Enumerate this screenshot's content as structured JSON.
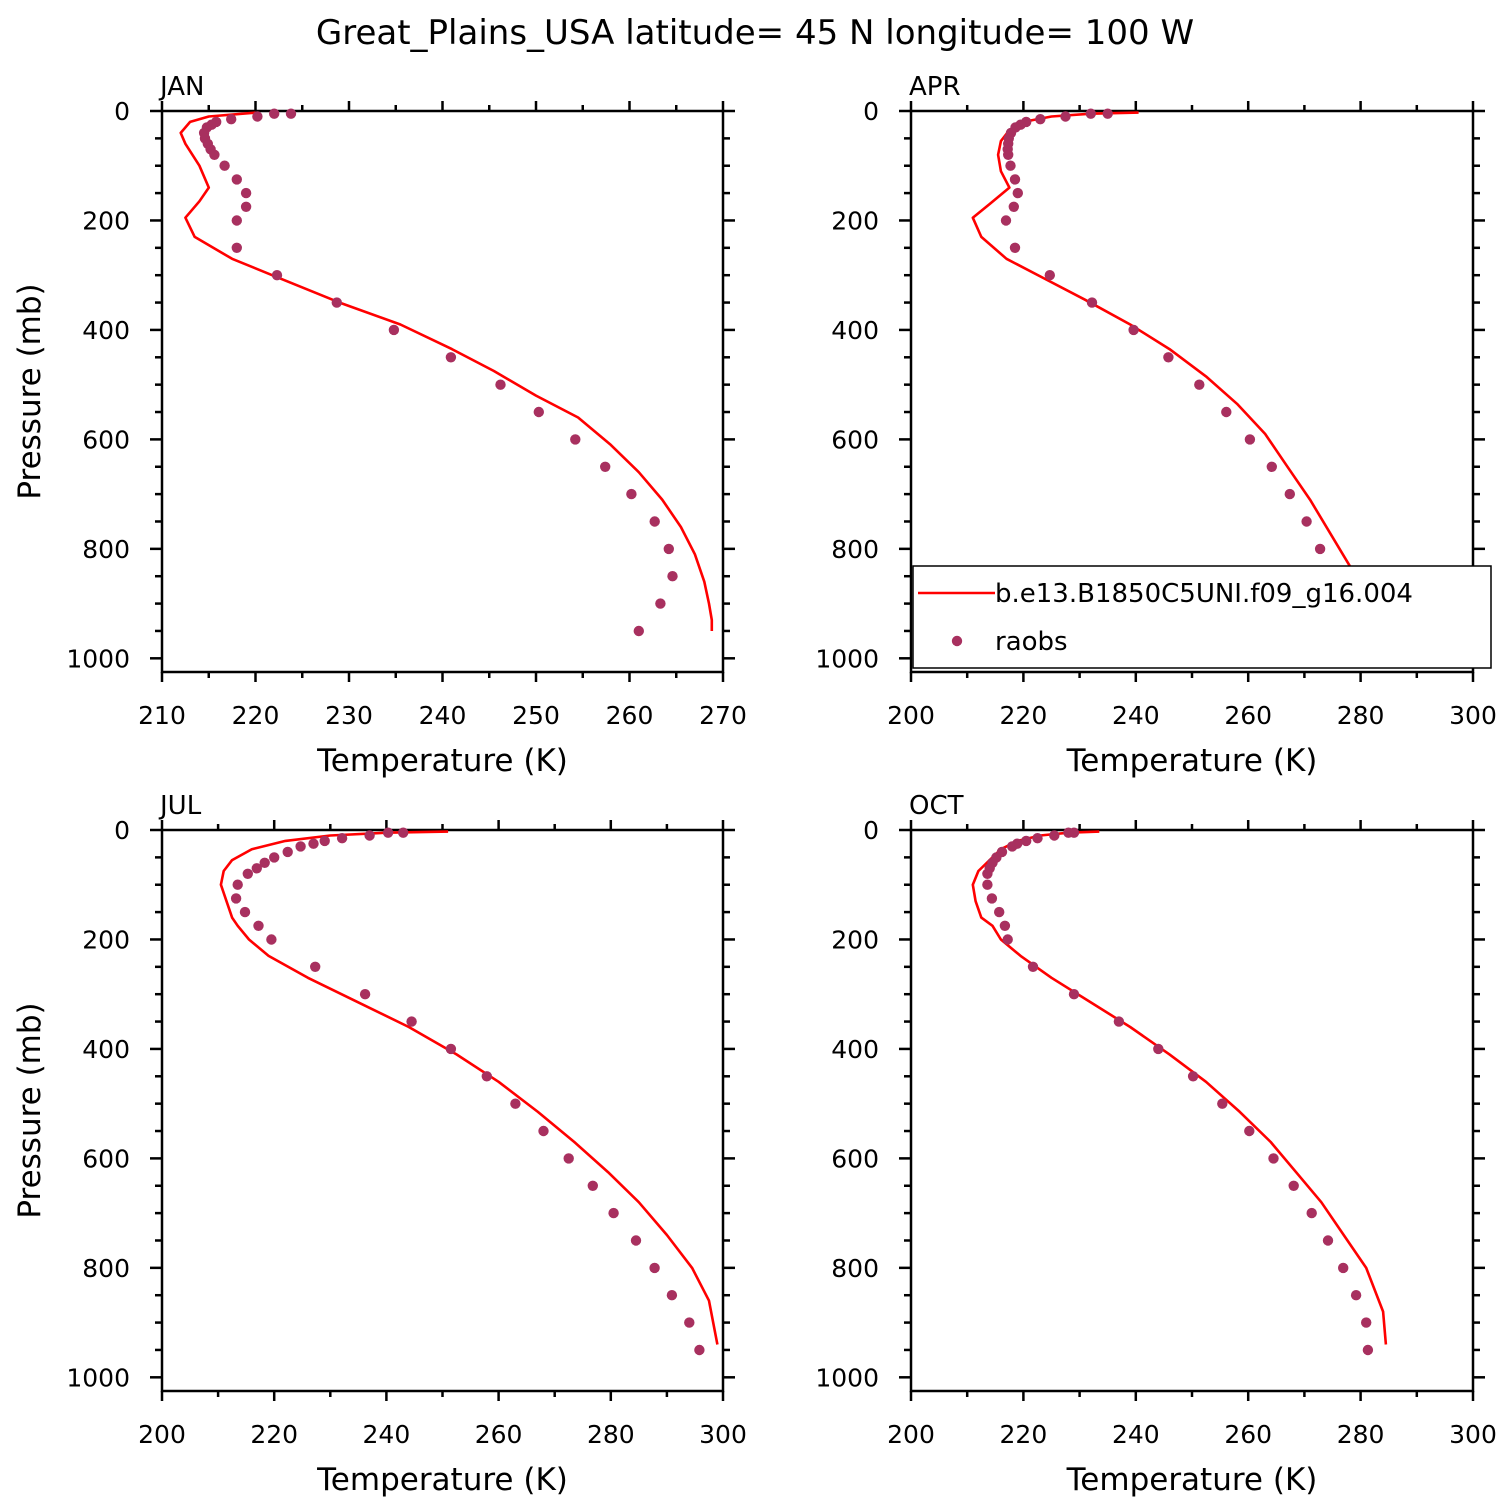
{
  "figure_title": "Great_Plains_USA  latitude= 45 N longitude= 100 W",
  "colors": {
    "model_line": "#ff0000",
    "obs_marker": "#a8305f",
    "axes": "#000000"
  },
  "legend": {
    "model_label": "b.e13.B1850C5UNI.f09_g16.004",
    "obs_label": "raobs"
  },
  "chart_data": [
    {
      "type": "line",
      "panel_label": "JAN",
      "xlabel": "Temperature (K)",
      "ylabel": "Pressure (mb)",
      "xlim": [
        210,
        270
      ],
      "ylim": [
        1025,
        0
      ],
      "y_inverted": true,
      "x_ticks": [
        210,
        220,
        230,
        240,
        250,
        260,
        270
      ],
      "y_ticks": [
        0,
        200,
        400,
        600,
        800,
        1000
      ],
      "series": [
        {
          "name": "b.e13.B1850C5UNI.f09_g16.004",
          "kind": "line",
          "x": [
            220.0,
            215.0,
            213.0,
            212.0,
            212.5,
            214.0,
            215.0,
            214.0,
            212.5,
            213.5,
            217.5,
            222.5,
            229.0,
            235.5,
            241.0,
            245.5,
            250.0,
            254.5,
            258.0,
            261.0,
            263.5,
            265.5,
            267.0,
            268.0,
            268.5,
            268.8,
            268.8
          ],
          "y": [
            3,
            10,
            20,
            40,
            60,
            100,
            140,
            165,
            195,
            230,
            270,
            305,
            350,
            390,
            435,
            475,
            520,
            560,
            610,
            660,
            710,
            760,
            810,
            860,
            900,
            930,
            950
          ]
        },
        {
          "name": "raobs",
          "kind": "scatter",
          "x": [
            223.8,
            222.0,
            220.2,
            217.4,
            215.8,
            215.3,
            214.8,
            214.5,
            214.6,
            214.9,
            215.2,
            215.6,
            216.7,
            218.0,
            219.0,
            219.0,
            218.0,
            218.0,
            222.3,
            228.7,
            234.8,
            240.9,
            246.2,
            250.3,
            254.2,
            257.4,
            260.2,
            262.7,
            264.2,
            264.6,
            263.3,
            261.0
          ],
          "y": [
            5,
            5,
            10,
            15,
            20,
            25,
            30,
            40,
            50,
            60,
            70,
            80,
            100,
            125,
            150,
            175,
            200,
            250,
            300,
            350,
            400,
            450,
            500,
            550,
            600,
            650,
            700,
            750,
            800,
            850,
            900,
            950
          ]
        }
      ]
    },
    {
      "type": "line",
      "panel_label": "APR",
      "xlabel": "Temperature (K)",
      "ylabel": "",
      "xlim": [
        200,
        300
      ],
      "ylim": [
        1025,
        0
      ],
      "y_inverted": true,
      "x_ticks": [
        200,
        220,
        240,
        260,
        280,
        300
      ],
      "y_ticks": [
        0,
        200,
        400,
        600,
        800,
        1000
      ],
      "series": [
        {
          "name": "b.e13.B1850C5UNI.f09_g16.004",
          "kind": "line",
          "x": [
            240.5,
            232.0,
            225.0,
            220.0,
            217.5,
            216.0,
            215.5,
            216.0,
            217.5,
            214.0,
            211.0,
            212.5,
            217.0,
            223.5,
            231.0,
            239.0,
            246.0,
            252.5,
            258.0,
            263.0,
            267.0,
            271.0,
            274.5,
            278.0,
            281.0,
            282.5
          ],
          "y": [
            3,
            5,
            10,
            20,
            35,
            55,
            80,
            110,
            140,
            170,
            195,
            230,
            270,
            305,
            345,
            390,
            435,
            485,
            535,
            590,
            650,
            710,
            770,
            830,
            890,
            940
          ]
        },
        {
          "name": "raobs",
          "kind": "scatter",
          "x": [
            235.0,
            232.0,
            227.5,
            223.0,
            220.5,
            219.5,
            218.6,
            217.8,
            217.4,
            217.3,
            217.2,
            217.3,
            217.7,
            218.5,
            219.0,
            218.3,
            216.9,
            218.5,
            224.7,
            232.2,
            239.6,
            245.8,
            251.3,
            256.1,
            260.3,
            264.2,
            267.4,
            270.4,
            272.8,
            275.4,
            277.9,
            279.3
          ],
          "y": [
            5,
            5,
            10,
            15,
            20,
            25,
            30,
            40,
            50,
            60,
            70,
            80,
            100,
            125,
            150,
            175,
            200,
            250,
            300,
            350,
            400,
            450,
            500,
            550,
            600,
            650,
            700,
            750,
            800,
            850,
            900,
            950
          ]
        }
      ]
    },
    {
      "type": "line",
      "panel_label": "JUL",
      "xlabel": "Temperature (K)",
      "ylabel": "Pressure (mb)",
      "xlim": [
        200,
        300
      ],
      "ylim": [
        1025,
        0
      ],
      "y_inverted": true,
      "x_ticks": [
        200,
        220,
        240,
        260,
        280,
        300
      ],
      "y_ticks": [
        0,
        200,
        400,
        600,
        800,
        1000
      ],
      "series": [
        {
          "name": "b.e13.B1850C5UNI.f09_g16.004",
          "kind": "line",
          "x": [
            251.0,
            240.0,
            230.0,
            222.0,
            216.0,
            212.5,
            211.0,
            210.5,
            211.5,
            212.5,
            213.5,
            215.5,
            219.0,
            226.0,
            235.0,
            244.0,
            252.5,
            260.0,
            267.0,
            273.5,
            279.5,
            285.0,
            290.0,
            294.5,
            297.5,
            299.0
          ],
          "y": [
            3,
            5,
            10,
            20,
            35,
            55,
            75,
            100,
            130,
            160,
            175,
            200,
            230,
            270,
            315,
            360,
            410,
            460,
            515,
            570,
            625,
            680,
            740,
            800,
            860,
            940
          ]
        },
        {
          "name": "raobs",
          "kind": "scatter",
          "x": [
            243.0,
            240.3,
            237.0,
            232.1,
            229.0,
            227.0,
            224.7,
            222.4,
            220.0,
            218.3,
            216.9,
            215.3,
            213.5,
            213.2,
            214.8,
            217.2,
            219.5,
            227.3,
            236.2,
            244.5,
            251.5,
            257.9,
            263.0,
            268.0,
            272.5,
            276.8,
            280.5,
            284.5,
            287.8,
            290.9,
            294.0,
            295.8
          ],
          "y": [
            5,
            5,
            10,
            15,
            20,
            25,
            30,
            40,
            50,
            60,
            70,
            80,
            100,
            125,
            150,
            175,
            200,
            250,
            300,
            350,
            400,
            450,
            500,
            550,
            600,
            650,
            700,
            750,
            800,
            850,
            900,
            950
          ]
        }
      ]
    },
    {
      "type": "line",
      "panel_label": "OCT",
      "xlabel": "Temperature (K)",
      "ylabel": "",
      "xlim": [
        200,
        300
      ],
      "ylim": [
        1025,
        0
      ],
      "y_inverted": true,
      "x_ticks": [
        200,
        220,
        240,
        260,
        280,
        300
      ],
      "y_ticks": [
        0,
        200,
        400,
        600,
        800,
        1000
      ],
      "series": [
        {
          "name": "b.e13.B1850C5UNI.f09_g16.004",
          "kind": "line",
          "x": [
            233.5,
            228.0,
            223.0,
            219.0,
            216.0,
            214.0,
            212.0,
            211.0,
            211.5,
            212.5,
            214.5,
            216.0,
            219.5,
            225.0,
            232.0,
            239.0,
            246.0,
            252.5,
            258.5,
            264.0,
            268.5,
            273.0,
            277.0,
            281.0,
            284.0,
            284.5
          ],
          "y": [
            3,
            5,
            10,
            20,
            35,
            55,
            75,
            100,
            130,
            160,
            175,
            200,
            230,
            270,
            315,
            360,
            410,
            460,
            515,
            570,
            625,
            680,
            740,
            800,
            880,
            940
          ]
        },
        {
          "name": "raobs",
          "kind": "scatter",
          "x": [
            229.0,
            228.0,
            225.5,
            222.5,
            220.5,
            218.9,
            218.0,
            216.2,
            215.2,
            214.5,
            214.0,
            213.6,
            213.6,
            214.4,
            215.7,
            216.7,
            217.2,
            221.7,
            229.0,
            237.0,
            244.0,
            250.2,
            255.4,
            260.2,
            264.5,
            268.1,
            271.3,
            274.2,
            276.9,
            279.2,
            281.0,
            281.3
          ],
          "y": [
            5,
            5,
            10,
            15,
            20,
            25,
            30,
            40,
            50,
            60,
            70,
            80,
            100,
            125,
            150,
            175,
            200,
            250,
            300,
            350,
            400,
            450,
            500,
            550,
            600,
            650,
            700,
            750,
            800,
            850,
            900,
            950
          ]
        }
      ]
    }
  ]
}
